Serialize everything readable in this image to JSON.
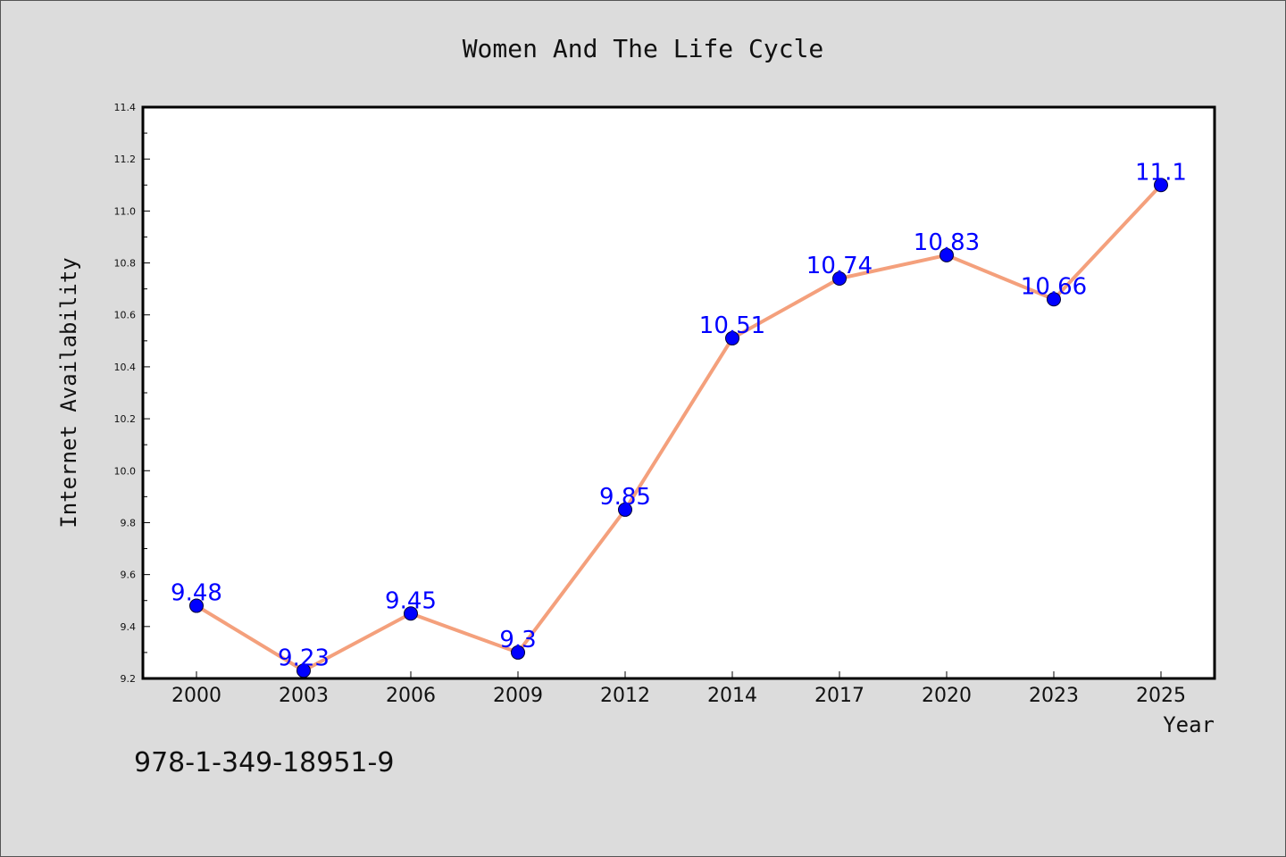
{
  "chart_data": {
    "type": "line",
    "title": "Women And The Life Cycle",
    "xlabel": "Year",
    "ylabel": "Internet Availability",
    "categories": [
      "2000",
      "2003",
      "2006",
      "2009",
      "2012",
      "2014",
      "2017",
      "2020",
      "2023",
      "2025"
    ],
    "values": [
      9.48,
      9.23,
      9.45,
      9.3,
      9.85,
      10.51,
      10.74,
      10.83,
      10.66,
      11.1
    ],
    "data_labels": [
      "9.48",
      "9.23",
      "9.45",
      "9.3",
      "9.85",
      "10.51",
      "10.74",
      "10.83",
      "10.66",
      "11.1"
    ],
    "ylim": [
      9.2,
      11.4
    ],
    "y_ticks": [
      9.2,
      9.4,
      9.6,
      9.8,
      10.0,
      10.2,
      10.4,
      10.6,
      10.8,
      11.0,
      11.2,
      11.4
    ],
    "y_tick_labels": [
      "9.2",
      "9.4",
      "9.6",
      "9.8",
      "10.0",
      "10.2",
      "10.4",
      "10.6",
      "10.8",
      "11.0",
      "11.2",
      "11.4"
    ],
    "grid": false,
    "legend": "none",
    "colors": {
      "line": "#f4a07c",
      "marker": "#0000ff",
      "data_label": "#0000ff",
      "background": "#dcdcdc",
      "plot_background": "#ffffff",
      "frame": "#000000"
    }
  },
  "footer": {
    "isbn": "978-1-349-18951-9"
  }
}
